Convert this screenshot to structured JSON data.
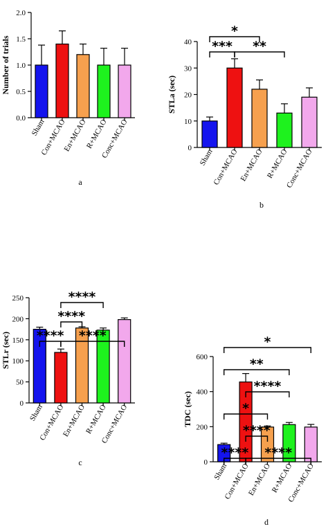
{
  "colors": {
    "Sham": "#1414ee",
    "Con+MCAO": "#ee1111",
    "En+MCAO": "#f6a04e",
    "R+MCAO": "#1ef21e",
    "Conc+MCAO": "#f2a8ec"
  },
  "chart_data": [
    {
      "type": "bar",
      "panel": "a",
      "ylabel": "Number of trials",
      "ylim": [
        0,
        2.0
      ],
      "yticks": [
        "0.0",
        "0.5",
        "1.0",
        "1.5",
        "2.0"
      ],
      "categories": [
        "Sham",
        "Con+MCAO",
        "En+MCAO",
        "R+MCAO",
        "Conc+MCAO"
      ],
      "values": [
        1.0,
        1.4,
        1.2,
        1.0,
        1.0
      ],
      "errors": [
        0.38,
        0.25,
        0.2,
        0.32,
        0.32
      ],
      "significance": []
    },
    {
      "type": "bar",
      "panel": "b",
      "ylabel": "STLa (sec)",
      "ylim": [
        0,
        40
      ],
      "yticks": [
        "0",
        "10",
        "20",
        "30",
        "40"
      ],
      "categories": [
        "Sham",
        "Con+MCAO",
        "En+MCAO",
        "R+MCAO",
        "Conc+MCAO"
      ],
      "values": [
        10,
        30,
        22,
        13,
        19
      ],
      "errors": [
        1.5,
        3.5,
        3.5,
        3.5,
        3.5
      ],
      "significance": [
        {
          "from": 0,
          "to": 2,
          "label": "*",
          "level": 2
        },
        {
          "from": 0,
          "to": 1,
          "label": "***",
          "level": 1
        },
        {
          "from": 1,
          "to": 3,
          "label": "**",
          "level": 1
        }
      ]
    },
    {
      "type": "bar",
      "panel": "c",
      "ylabel": "STLr (sec)",
      "ylim": [
        0,
        250
      ],
      "yticks": [
        "0",
        "50",
        "100",
        "150",
        "200",
        "250"
      ],
      "categories": [
        "Sham",
        "Con+MCAO",
        "En+MCAO",
        "R+MCAO",
        "Conc+MCAO"
      ],
      "values": [
        175,
        120,
        178,
        173,
        198
      ],
      "errors": [
        5,
        8,
        3,
        5,
        4
      ],
      "significance": [
        {
          "from": 1,
          "to": 3,
          "label": "****",
          "level": 3
        },
        {
          "from": 1,
          "to": 2,
          "label": "****",
          "level": 2
        },
        {
          "from": 0,
          "to": 1,
          "label": "****",
          "level": 1
        },
        {
          "from": 1,
          "to": 4,
          "label": "****",
          "level": 1
        }
      ]
    },
    {
      "type": "bar",
      "panel": "d",
      "ylabel": "TDC (sec)",
      "ylim": [
        0,
        600
      ],
      "yticks": [
        "0",
        "200",
        "400",
        "600"
      ],
      "categories": [
        "Sham",
        "Con+MCAO",
        "En+MCAO",
        "R+MCAO",
        "Conc+MCAO"
      ],
      "values": [
        98,
        455,
        198,
        212,
        198
      ],
      "errors": [
        8,
        48,
        6,
        12,
        15
      ],
      "significance": [
        {
          "from": 0,
          "to": 4,
          "label": "*",
          "level": 6
        },
        {
          "from": 0,
          "to": 3,
          "label": "**",
          "level": 5
        },
        {
          "from": 1,
          "to": 3,
          "label": "****",
          "level": 4
        },
        {
          "from": 0,
          "to": 2,
          "label": "*",
          "level": 3
        },
        {
          "from": 1,
          "to": 2,
          "label": "****",
          "level": 2
        },
        {
          "from": 0,
          "to": 1,
          "label": "****",
          "level": 1
        },
        {
          "from": 1,
          "to": 4,
          "label": "****",
          "level": 1
        }
      ]
    }
  ]
}
